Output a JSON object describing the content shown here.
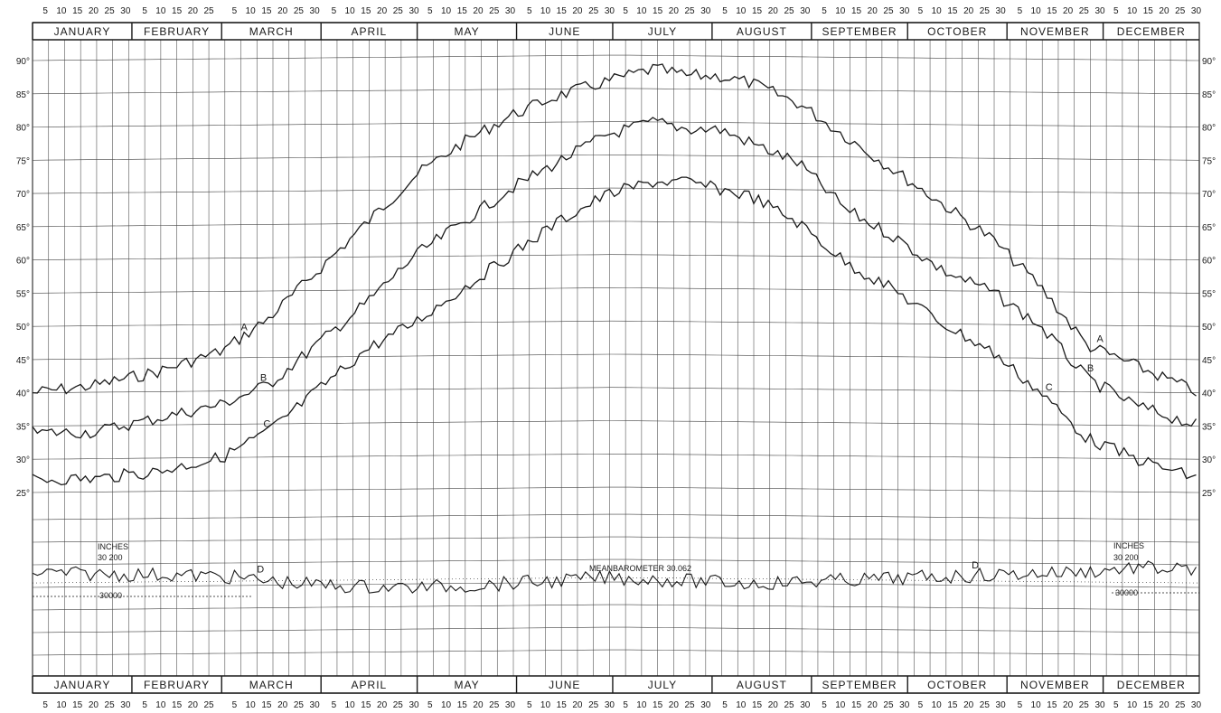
{
  "chart_data": {
    "type": "line",
    "title": "",
    "months": [
      "JANUARY",
      "FEBRUARY",
      "MARCH",
      "APRIL",
      "MAY",
      "JUNE",
      "JULY",
      "AUGUST",
      "SEPTEMBER",
      "OCTOBER",
      "NOVEMBER",
      "DECEMBER"
    ],
    "day_ticks": [
      [
        "5",
        "10",
        "15",
        "20",
        "25",
        "30"
      ],
      [
        "5",
        "10",
        "15",
        "20",
        "25"
      ],
      [
        "5",
        "10",
        "15",
        "20",
        "25",
        "30"
      ],
      [
        "5",
        "10",
        "15",
        "20",
        "25",
        "30"
      ],
      [
        "5",
        "10",
        "15",
        "20",
        "25",
        "30"
      ],
      [
        "5",
        "10",
        "15",
        "20",
        "25",
        "30"
      ],
      [
        "5",
        "10",
        "15",
        "20",
        "25",
        "30"
      ],
      [
        "5",
        "10",
        "15",
        "20",
        "25",
        "30"
      ],
      [
        "5",
        "10",
        "15",
        "20",
        "25",
        "30"
      ],
      [
        "5",
        "10",
        "15",
        "20",
        "25",
        "30"
      ],
      [
        "5",
        "10",
        "15",
        "20",
        "25",
        "30"
      ],
      [
        "5",
        "10",
        "15",
        "20",
        "25",
        "30"
      ]
    ],
    "y_tick_labels": [
      "25°",
      "30°",
      "35°",
      "40°",
      "45°",
      "50°",
      "55°",
      "60°",
      "65°",
      "70°",
      "75°",
      "80°",
      "85°",
      "90°"
    ],
    "y_tick_values": [
      25,
      30,
      35,
      40,
      45,
      50,
      55,
      60,
      65,
      70,
      75,
      80,
      85,
      90
    ],
    "ylim": [
      25,
      90
    ],
    "x_unit": "day of year",
    "xlim": [
      1,
      365
    ],
    "grid": true,
    "series": [
      {
        "name": "A",
        "label_positions_day": [
          66,
          333
        ],
        "x": [
          1,
          20,
          40,
          60,
          75,
          90,
          105,
          120,
          135,
          150,
          165,
          180,
          195,
          205,
          215,
          225,
          240,
          255,
          270,
          285,
          300,
          315,
          330,
          345,
          365
        ],
        "values": [
          40,
          41,
          43,
          46,
          51,
          58,
          65,
          72,
          77,
          81,
          84,
          86,
          88,
          87,
          87,
          86,
          83,
          78,
          73,
          68,
          63,
          56,
          47,
          44,
          40
        ]
      },
      {
        "name": "B",
        "label_positions_day": [
          72,
          330
        ],
        "x": [
          1,
          20,
          40,
          60,
          75,
          90,
          105,
          120,
          135,
          150,
          165,
          180,
          195,
          205,
          215,
          225,
          240,
          255,
          270,
          285,
          300,
          315,
          330,
          345,
          365
        ],
        "values": [
          34,
          34,
          36,
          38,
          41,
          47,
          53,
          60,
          65,
          70,
          74,
          78,
          80,
          79,
          79,
          77,
          74,
          67,
          63,
          58,
          55,
          50,
          42,
          38,
          35
        ]
      },
      {
        "name": "C",
        "label_positions_day": [
          73,
          317
        ],
        "x": [
          1,
          20,
          40,
          60,
          75,
          90,
          105,
          120,
          135,
          150,
          165,
          180,
          195,
          205,
          215,
          225,
          240,
          255,
          270,
          285,
          300,
          315,
          330,
          345,
          365
        ],
        "values": [
          27,
          27,
          28,
          30,
          34,
          40,
          46,
          50,
          55,
          60,
          65,
          69,
          71,
          71,
          70,
          69,
          65,
          59,
          55,
          50,
          46,
          40,
          33,
          30,
          27
        ]
      },
      {
        "name": "D",
        "label_positions_day": [
          71,
          294
        ],
        "x": [
          1,
          20,
          40,
          60,
          75,
          90,
          105,
          120,
          135,
          150,
          165,
          180,
          195,
          205,
          215,
          225,
          240,
          255,
          270,
          285,
          300,
          315,
          330,
          345,
          365
        ],
        "values": [
          30.11,
          30.1,
          30.095,
          30.085,
          30.06,
          30.04,
          30.03,
          30.025,
          30.03,
          30.04,
          30.05,
          30.062,
          30.055,
          30.05,
          30.045,
          30.04,
          30.05,
          30.06,
          30.07,
          30.08,
          30.09,
          30.1,
          30.11,
          30.13,
          30.12
        ]
      }
    ],
    "barometer": {
      "units_label": "INCHES",
      "high_label": "30 200",
      "low_label": "30000",
      "mean_label": "MEANBAROMETER 30.062",
      "mean_value": 30.062,
      "range": [
        30.0,
        30.2
      ]
    }
  }
}
